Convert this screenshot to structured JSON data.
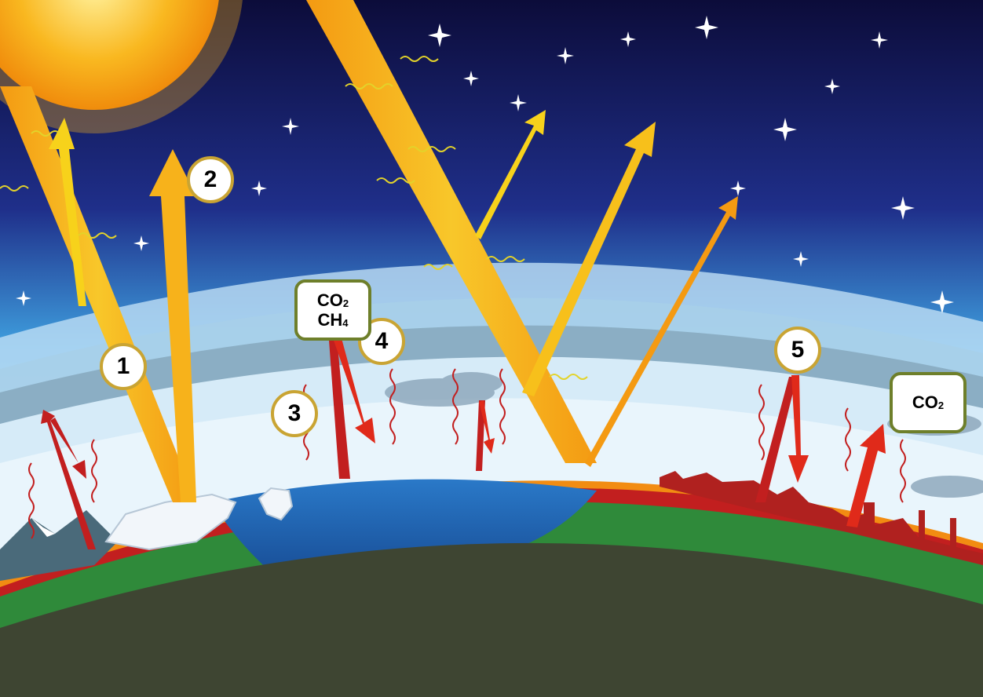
{
  "colors": {
    "space_top": "#0c0c3a",
    "space_mid": "#1f2f8a",
    "sky_edge": "#3fa0df",
    "atmosphere_light": "#dbeefa",
    "cloud_band": "#7f9fb4",
    "sunlight": "#f6a614",
    "sunlight_bright": "#f7d21b",
    "heat_red": "#c21f1f",
    "surface_orange": "#f28c12",
    "ground_green": "#2f8a3a",
    "ocean_blue": "#1d63b5",
    "earth_dark": "#3e4532",
    "badge_border": "#c9a433",
    "gas_border": "#6e7f2a"
  },
  "steps": [
    {
      "id": "1",
      "label": "1"
    },
    {
      "id": "2",
      "label": "2"
    },
    {
      "id": "3",
      "label": "3"
    },
    {
      "id": "4",
      "label": "4"
    },
    {
      "id": "5",
      "label": "5"
    }
  ],
  "gas_labels": {
    "greenhouse_gases": {
      "line1": "CO",
      "line1_sub": "2",
      "line2": "CH",
      "line2_sub": "4"
    },
    "industrial_emission": {
      "line1": "CO",
      "line1_sub": "2"
    }
  },
  "icons": [
    "sun-icon",
    "star-icon",
    "cloud-icon",
    "factory-skyline-icon",
    "iceberg-icon",
    "mountain-icon"
  ]
}
